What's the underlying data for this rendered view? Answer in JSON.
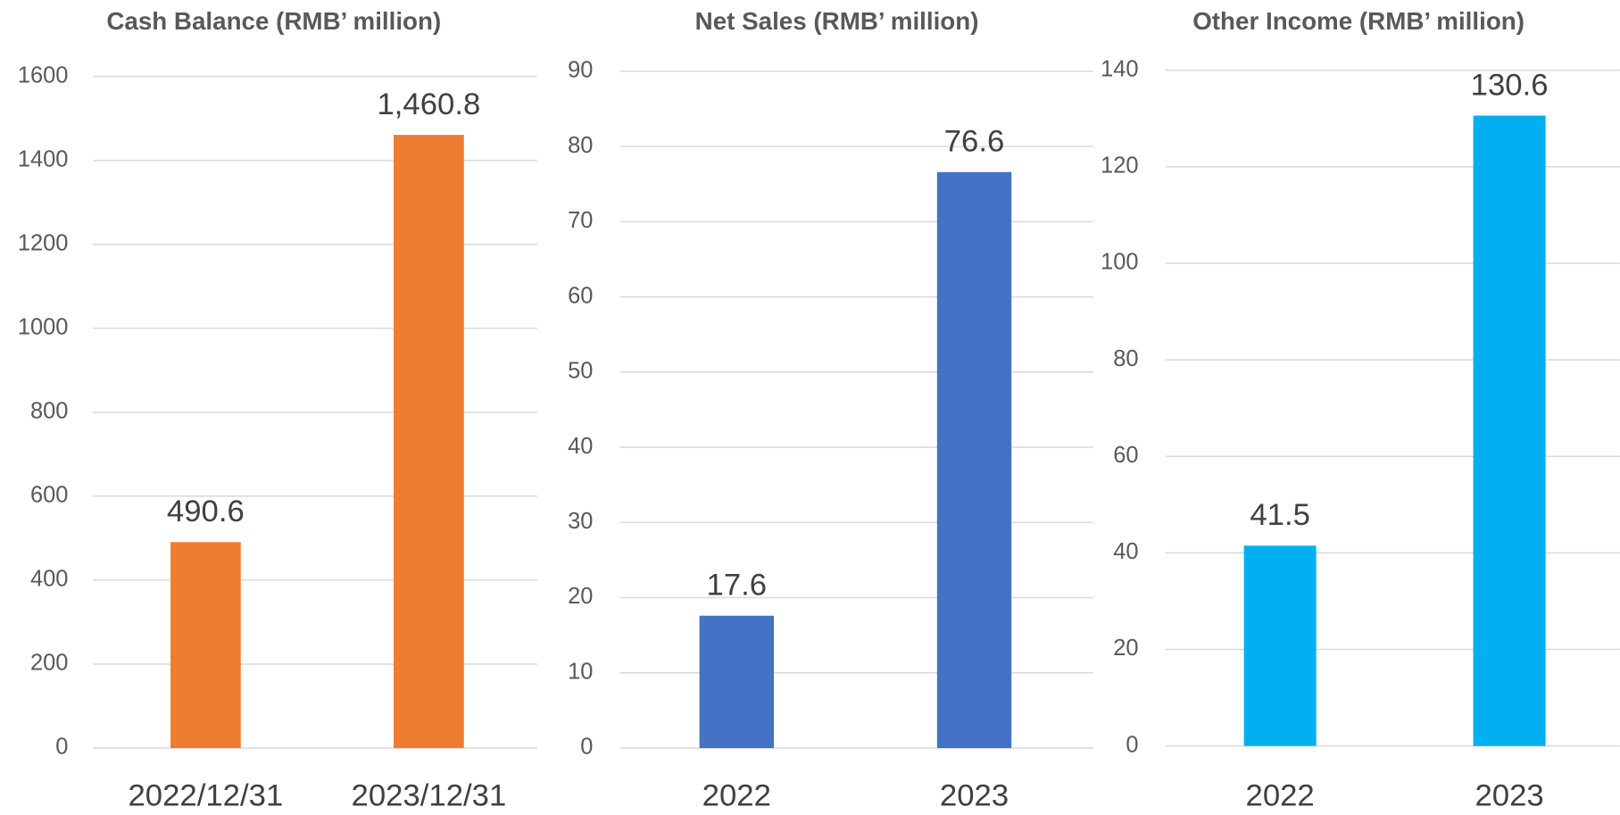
{
  "chart_data": [
    {
      "type": "bar",
      "title": "Cash Balance (RMB’ million)",
      "categories": [
        "2022/12/31",
        "2023/12/31"
      ],
      "values": [
        490.6,
        1460.8
      ],
      "value_labels": [
        "490.6",
        "1,460.8"
      ],
      "color": "#ed7d31",
      "ylim": [
        0,
        1600
      ],
      "yticks": [
        0,
        200,
        400,
        600,
        800,
        1000,
        1200,
        1400,
        1600
      ],
      "grid": true
    },
    {
      "type": "bar",
      "title": "Net Sales (RMB’ million)",
      "categories": [
        "2022",
        "2023"
      ],
      "values": [
        17.6,
        76.6
      ],
      "color": "#4472c4",
      "ylim": [
        0,
        90
      ],
      "yticks": [
        0,
        10,
        20,
        30,
        40,
        50,
        60,
        70,
        80,
        90
      ],
      "grid": true
    },
    {
      "type": "bar",
      "title": "Other Income (RMB’ million)",
      "categories": [
        "2022",
        "2023"
      ],
      "values": [
        41.5,
        130.6
      ],
      "color": "#00b0f0",
      "ylim": [
        0,
        140
      ],
      "yticks": [
        0,
        20,
        40,
        60,
        80,
        100,
        120,
        140
      ],
      "grid": true
    }
  ]
}
